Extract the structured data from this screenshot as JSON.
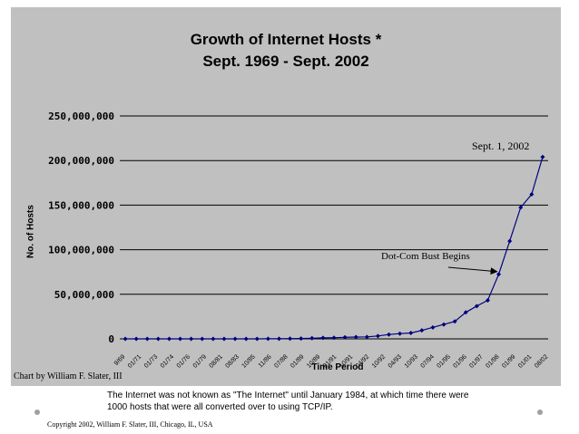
{
  "footnote": "The Internet was not known as \"The Internet\" until January 1984, at which time there were 1000 hosts that were all converted over to using TCP/IP.",
  "copyright": "Copyright 2002, William F. Slater, III, Chicago, IL, USA",
  "colors": {
    "plot_bg": "#c0c0c0",
    "series": "#000080",
    "grid": "#000000"
  },
  "chart_data": {
    "type": "line",
    "title": "Growth of Internet Hosts *",
    "subtitle": "Sept. 1969 - Sept. 2002",
    "xlabel": "Time Period",
    "ylabel": "No. of Hosts",
    "credit": "Chart by William F. Slater, III",
    "ylim": [
      0,
      250000000
    ],
    "yticks": [
      "0",
      "50,000,000",
      "100,000,000",
      "150,000,000",
      "200,000,000",
      "250,000,000"
    ],
    "grid": true,
    "legend": "none",
    "x_tick_labels": [
      "9/69",
      "01/71",
      "01/73",
      "01/74",
      "01/76",
      "01/79",
      "08/81",
      "08/83",
      "10/85",
      "11/86",
      "07/88",
      "01/89",
      "10/89",
      "01/91",
      "10/91",
      "04/92",
      "10/92",
      "04/93",
      "10/93",
      "07/94",
      "01/95",
      "01/96",
      "01/97",
      "01/98",
      "01/99",
      "01/01",
      "08/02"
    ],
    "series": [
      {
        "values": [
          4,
          13,
          23,
          23,
          23,
          62,
          188,
          213,
          1961,
          2308,
          5089,
          28174,
          33000,
          80000,
          159000,
          313000,
          376000,
          727000,
          1136000,
          1313000,
          1776000,
          2056000,
          2217000,
          3212000,
          4852000,
          5846000,
          6642000,
          9472000,
          12881000,
          16146000,
          19540000,
          29670000,
          36739000,
          43230000,
          72398000,
          109574000,
          147345000,
          162128000,
          204000000
        ]
      }
    ],
    "annotations": [
      {
        "text": "Sept. 1, 2002",
        "target_index": 38
      },
      {
        "text": "Dot-Com Bust Begins",
        "target_index": 34
      }
    ]
  }
}
